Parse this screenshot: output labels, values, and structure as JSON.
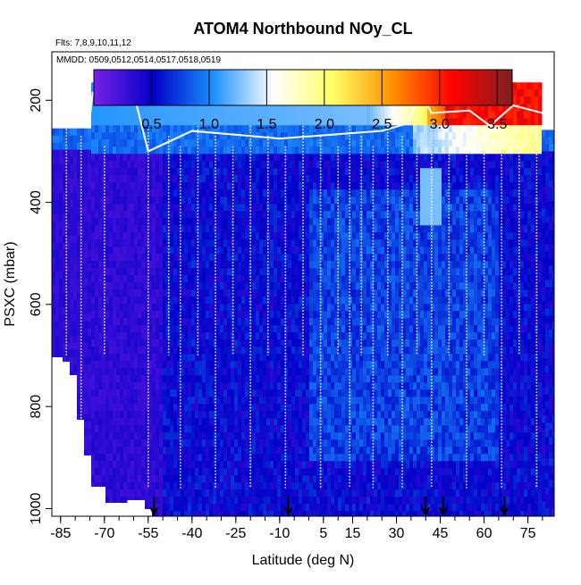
{
  "chart_data": {
    "type": "heatmap",
    "title": "ATOM4 Northbound NOy_CL",
    "flights_note": "Flts: 7,8,9,10,11,12",
    "dates_note": "MMDD: 0509,0512,0514,0517,0518,0519",
    "xlabel": "Latitude (deg N)",
    "ylabel": "PSXC (mbar)",
    "xlim": [
      -88,
      84
    ],
    "ylim": [
      1015,
      105
    ],
    "x_ticks": [
      -85,
      -70,
      -55,
      -40,
      -25,
      -10,
      5,
      15,
      30,
      45,
      60,
      75
    ],
    "y_ticks": [
      200,
      400,
      600,
      800,
      1000
    ],
    "colorbar": {
      "range": [
        0,
        3.63
      ],
      "ticks": [
        0.5,
        1.0,
        1.5,
        2.0,
        2.5,
        3.0,
        3.5
      ],
      "tick_labels": [
        "0.5",
        "1.0",
        "1.5",
        "2.0",
        "2.5",
        "3.0",
        "3.5"
      ],
      "colors": [
        "#7a1fe6",
        "#0000c8",
        "#1a90ff",
        "#ffffff",
        "#ffff66",
        "#ff9000",
        "#ff0000",
        "#7f1f1f"
      ]
    },
    "arrow_latitudes": [
      -53,
      -7,
      40,
      46,
      67
    ],
    "profile_latitudes": [
      -83,
      -78,
      -70,
      -55,
      -48,
      -44,
      -38,
      -32,
      -26,
      -20,
      -14,
      -8,
      -2,
      4,
      10,
      14,
      18,
      22,
      27,
      32,
      37,
      42,
      48,
      54,
      60,
      66,
      72,
      78
    ],
    "field_description": "NOy_CL mixing ratio (ppbv) vs latitude and pressure; values mostly 0.2-1.0 in troposphere, up to ~3.5 in northern upper troposphere/lower stratosphere"
  }
}
